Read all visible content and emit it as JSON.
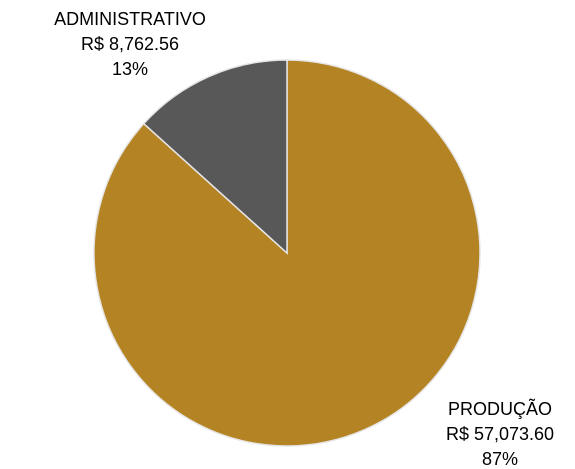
{
  "chart_data": {
    "type": "pie",
    "categories": [
      "PRODUÇÃO",
      "ADMINISTRATIVO"
    ],
    "values": [
      57073.6,
      8762.56
    ],
    "value_labels": [
      "R$ 57,073.60",
      "R$ 8,762.56"
    ],
    "percent_labels": [
      "87%",
      "13%"
    ],
    "colors": [
      "#b48424",
      "#585858"
    ]
  }
}
